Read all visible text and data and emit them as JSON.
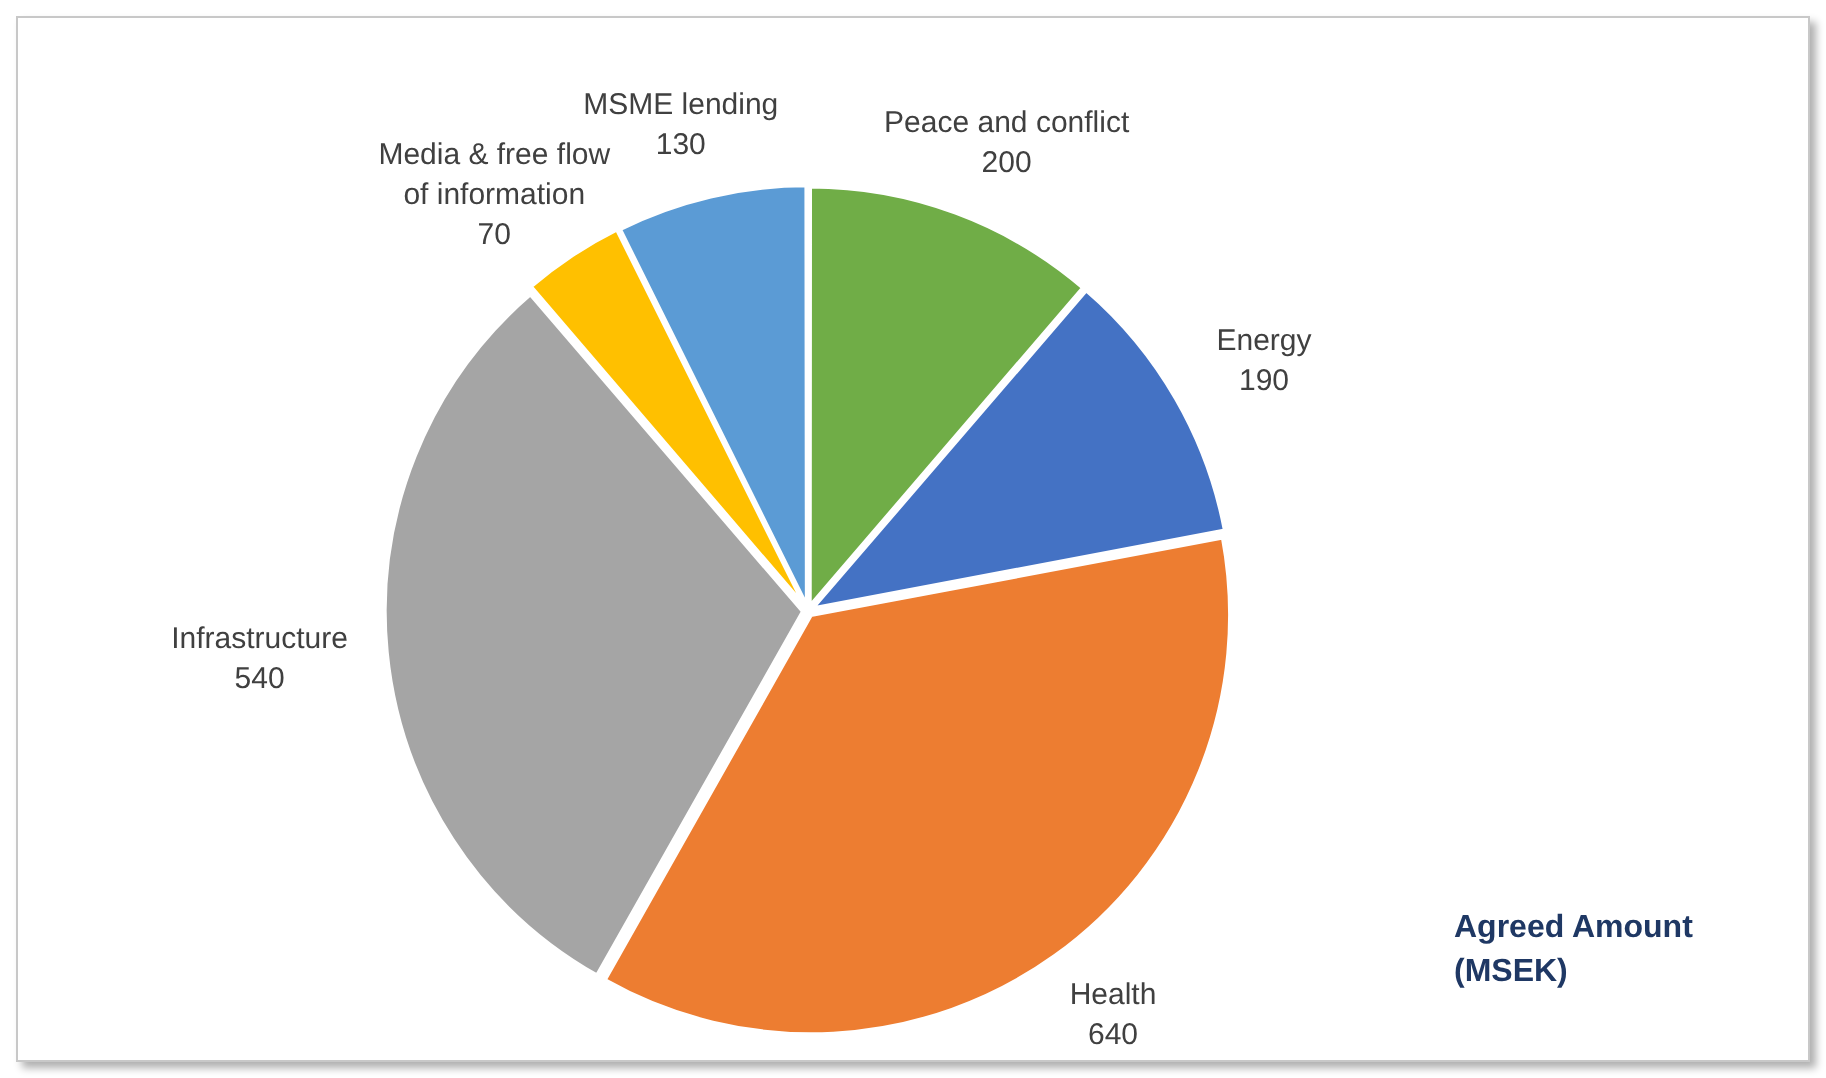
{
  "chart_data": {
    "type": "pie",
    "categories": [
      "Peace and conflict",
      "Energy",
      "Health",
      "Infrastructure",
      "Media & free flow of information",
      "MSME lending"
    ],
    "values": [
      200,
      190,
      640,
      540,
      70,
      130
    ],
    "colors": [
      "#70ad47",
      "#4472c4",
      "#ed7d31",
      "#a5a5a5",
      "#ffc000",
      "#5b9bd5"
    ],
    "data_labels": true,
    "annotations": [
      "Agreed Amount (MSEK)"
    ]
  }
}
